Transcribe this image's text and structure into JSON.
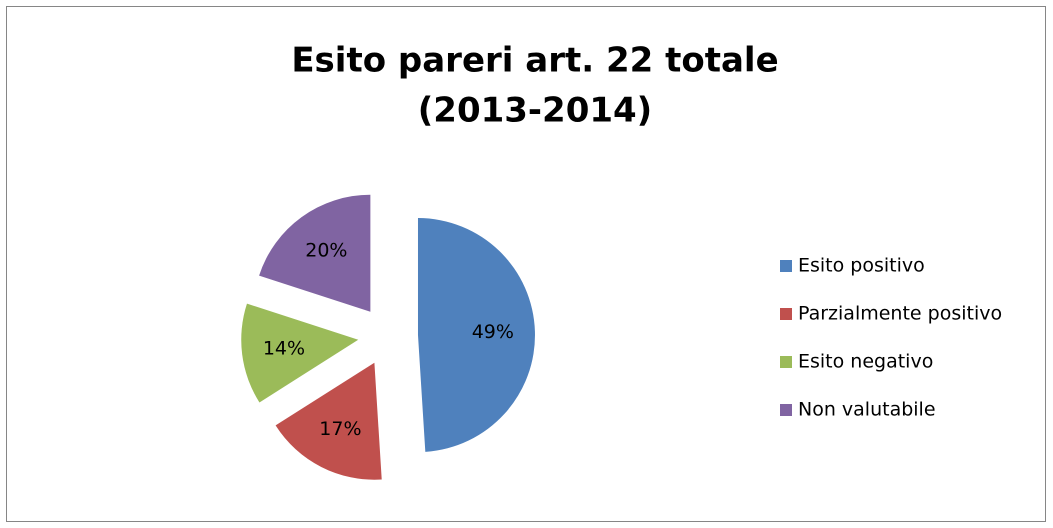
{
  "chart_data": {
    "type": "pie",
    "title": [
      "Esito pareri art. 22 totale",
      "(2013-2014)"
    ],
    "categories": [
      "Esito positivo",
      "Parzialmente positivo",
      "Esito negativo",
      "Non valutabile"
    ],
    "values": [
      49,
      17,
      14,
      20
    ],
    "value_labels": [
      "49%",
      "17%",
      "14%",
      "20%"
    ],
    "colors": [
      "#4f81bd",
      "#c0504d",
      "#9bbb59",
      "#8064a2"
    ],
    "exploded": true,
    "legend": "right"
  }
}
